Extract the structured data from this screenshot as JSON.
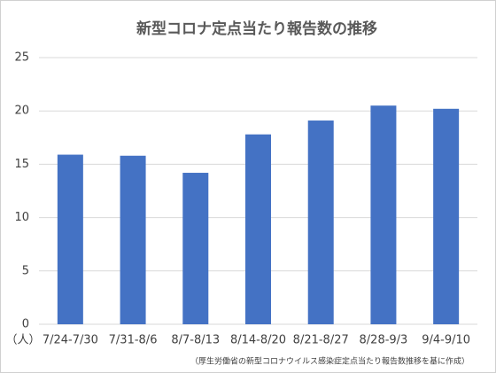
{
  "chart_data": {
    "type": "bar",
    "title": "新型コロナ定点当たり報告数の推移",
    "y_unit_label": "（人）",
    "note": "（厚生労働省の新型コロナウイルス感染症定点当たり報告数推移を基に作成）",
    "categories": [
      "7/24-7/30",
      "7/31-8/6",
      "8/7-8/13",
      "8/14-8/20",
      "8/21-8/27",
      "8/28-9/3",
      "9/4-9/10"
    ],
    "values": [
      15.9,
      15.8,
      14.2,
      17.8,
      19.1,
      20.5,
      20.2
    ],
    "color": "#4472c4",
    "ylim": [
      0,
      25
    ],
    "yticks": [
      0,
      5,
      10,
      15,
      20,
      25
    ],
    "grid": true
  }
}
